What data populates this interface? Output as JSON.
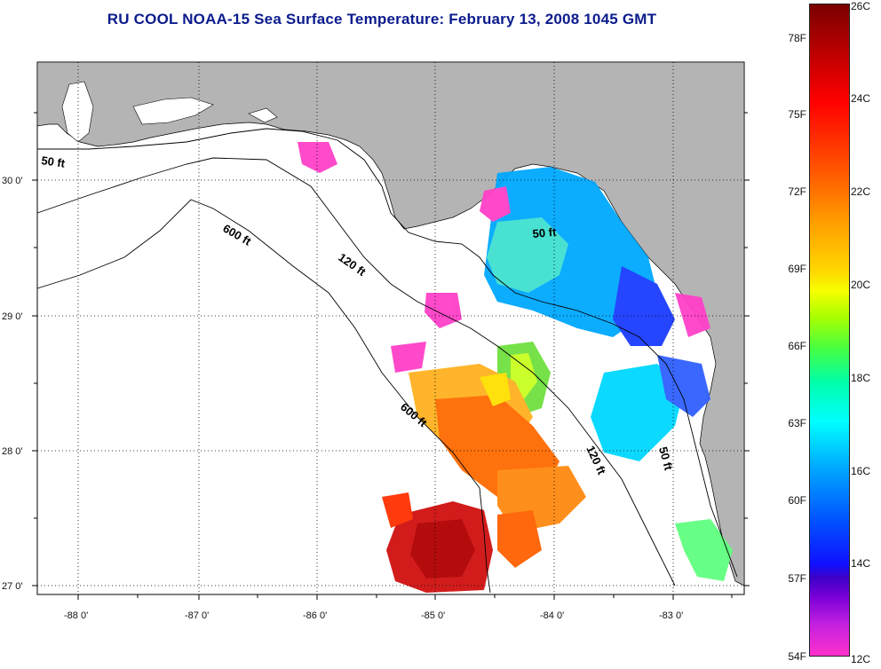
{
  "title": "RU COOL  NOAA-15  Sea Surface Temperature:  February 13, 2008 1045 GMT",
  "map": {
    "lon_ticks": [
      "-88 0'",
      "-87 0'",
      "-86 0'",
      "-85 0'",
      "-84 0'",
      "-83 0'"
    ],
    "lat_ticks": [
      "30 0'",
      "29 0'",
      "28 0'",
      "27 0'"
    ],
    "contour_labels": [
      "50 ft",
      "600 ft",
      "120 ft",
      "50 ft",
      "600 ft",
      "120 ft",
      "50 ft"
    ],
    "land_color": "#b4b4b4",
    "water_color": "#ffffff"
  },
  "colorbar": {
    "fahrenheit_labels": [
      "78F",
      "75F",
      "72F",
      "69F",
      "66F",
      "63F",
      "60F",
      "57F",
      "54F"
    ],
    "celsius_labels": [
      "26C",
      "24C",
      "22C",
      "20C",
      "18C",
      "16C",
      "14C",
      "12C"
    ]
  }
}
